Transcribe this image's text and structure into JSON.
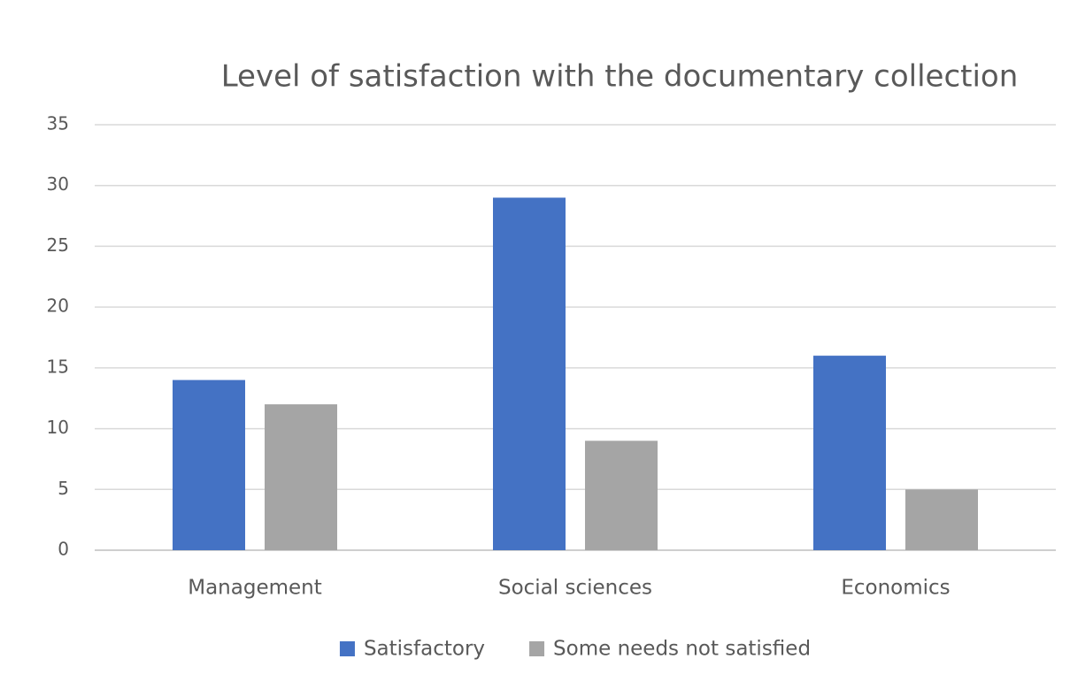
{
  "chart_data": {
    "type": "bar",
    "title": "Level of satisfaction with the documentary collection",
    "categories": [
      "Management",
      "Social sciences",
      "Economics"
    ],
    "series": [
      {
        "name": "Satisfactory",
        "color": "#4472c4",
        "values": [
          14,
          29,
          16
        ]
      },
      {
        "name": "Some needs not satisfied",
        "color": "#a5a5a5",
        "values": [
          12,
          9,
          5
        ]
      }
    ],
    "ylim": [
      0,
      35
    ],
    "yticks": [
      0,
      5,
      10,
      15,
      20,
      25,
      30,
      35
    ],
    "grid": true,
    "legend": "bottom"
  }
}
